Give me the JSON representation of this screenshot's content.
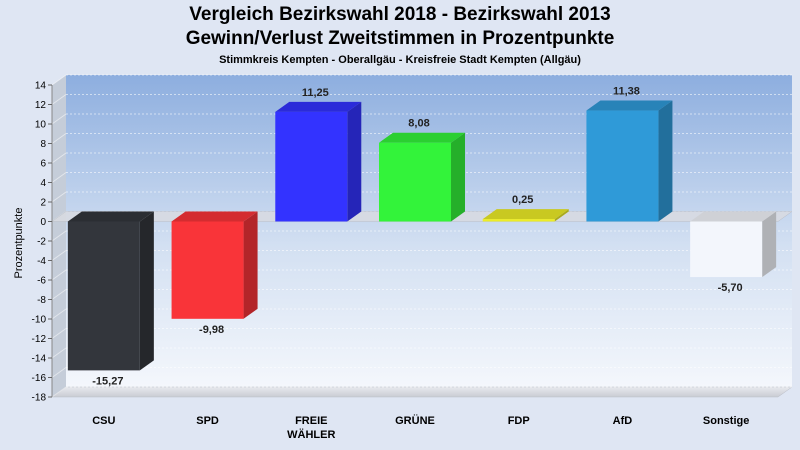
{
  "chart_data": {
    "type": "bar",
    "title": "Vergleich Bezirkswahl 2018 - Bezirkswahl 2013",
    "subtitle": "Gewinn/Verlust Zweitstimmen in Prozentpunkte",
    "subtitle2": "Stimmkreis Kempten - Oberallgäu - Kreisfreie Stadt Kempten (Allgäu)",
    "ylabel": "Prozentpunkte",
    "xlabel": "",
    "ylim": [
      -18,
      14
    ],
    "yticks": [
      14,
      12,
      10,
      8,
      6,
      4,
      2,
      0,
      -2,
      -4,
      -6,
      -8,
      -10,
      -12,
      -14,
      -16,
      -18
    ],
    "grid": true,
    "categories": [
      "CSU",
      "SPD",
      "FREIE WÄHLER",
      "GRÜNE",
      "FDP",
      "AfD",
      "Sonstige"
    ],
    "category_lines": [
      [
        "CSU"
      ],
      [
        "SPD"
      ],
      [
        "FREIE",
        "WÄHLER"
      ],
      [
        "GRÜNE"
      ],
      [
        "FDP"
      ],
      [
        "AfD"
      ],
      [
        "Sonstige"
      ]
    ],
    "values": [
      -15.27,
      -9.98,
      11.25,
      8.08,
      0.25,
      11.38,
      -5.7
    ],
    "value_labels": [
      "-15,27",
      "-9,98",
      "11,25",
      "8,08",
      "0,25",
      "11,38",
      "-5,70"
    ],
    "colors": [
      "#33363c",
      "#f93439",
      "#3333ff",
      "#33f33a",
      "#ecec27",
      "#2f9ad8",
      "#f3f6fc"
    ]
  }
}
